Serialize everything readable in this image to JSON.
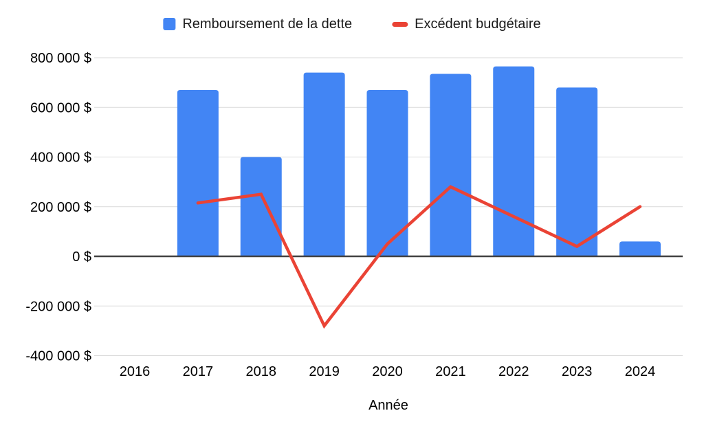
{
  "chart_data": {
    "type": "combo_bar_line",
    "title": "",
    "xlabel": "Année",
    "ylabel": "",
    "categories": [
      "2016",
      "2017",
      "2018",
      "2019",
      "2020",
      "2021",
      "2022",
      "2023",
      "2024"
    ],
    "series": [
      {
        "name": "Remboursement de la dette",
        "type": "bar",
        "color": "#4285F4",
        "values": [
          0,
          670000,
          400000,
          740000,
          670000,
          735000,
          765000,
          680000,
          60000
        ]
      },
      {
        "name": "Excédent budgétaire",
        "type": "line",
        "color": "#EA4335",
        "values": [
          null,
          215000,
          250000,
          -280000,
          50000,
          280000,
          160000,
          40000,
          200000
        ]
      }
    ],
    "ylim": [
      -400000,
      800000
    ],
    "ytick_step": 200000,
    "yticks": [
      {
        "value": 800000,
        "label": "800 000 $"
      },
      {
        "value": 600000,
        "label": "600 000 $"
      },
      {
        "value": 400000,
        "label": "400 000 $"
      },
      {
        "value": 200000,
        "label": "200 000 $"
      },
      {
        "value": 0,
        "label": "0 $"
      },
      {
        "value": -200000,
        "label": "-200 000 $"
      },
      {
        "value": -400000,
        "label": "-400 000 $"
      }
    ],
    "grid": "horizontal",
    "legend_position": "top"
  },
  "legend": {
    "items": [
      {
        "label": "Remboursement de la dette",
        "color": "#4285F4",
        "shape": "square"
      },
      {
        "label": "Excédent budgétaire",
        "color": "#EA4335",
        "shape": "dash"
      }
    ]
  },
  "styles": {
    "background": "#ffffff",
    "gridline_color": "#dadada",
    "axis_line_color": "#424242",
    "text_color": "#000000"
  }
}
